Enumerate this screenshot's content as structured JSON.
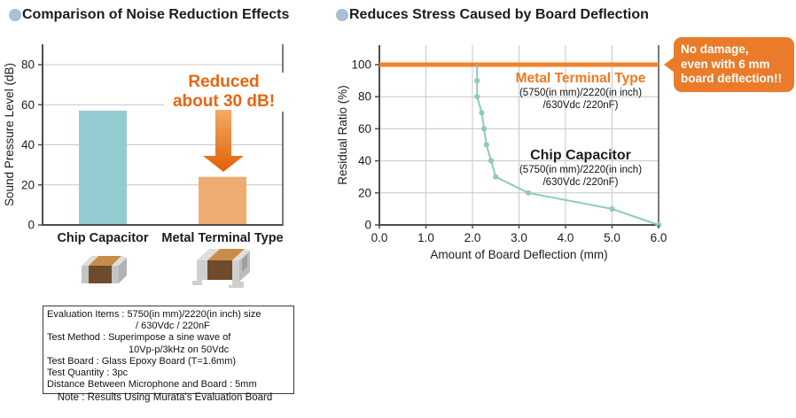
{
  "left": {
    "title": "Comparison of Noise Reduction Effects",
    "annotation": {
      "line1": "Reduced",
      "line2": "about 30 dB!"
    },
    "note_box": {
      "lines": [
        "Evaluation Items : 5750(in mm)/2220(in inch) size",
        "/ 630Vdc / 220nF",
        "Test Method : Superimpose a sine wave of",
        "10Vp-p/3kHz on 50Vdc",
        "Test Board : Glass Epoxy Board (T=1.6mm)",
        "Test Quantity : 3pc",
        "Distance Between Microphone and Board : 5mm"
      ]
    },
    "note": "Note : Results Using Murata's Evaluation Board"
  },
  "right": {
    "title": "Reduces Stress Caused by Board Deflection",
    "metal_label": {
      "name": "Metal Terminal Type",
      "spec1": "(5750(in mm)/2220(in inch)",
      "spec2": "/630Vdc /220nF)"
    },
    "chip_label": {
      "name": "Chip Capacitor",
      "spec1": "(5750(in mm)/2220(in inch)",
      "spec2": "/630Vdc /220nF)"
    },
    "callout": {
      "line1": "No damage,",
      "line2": "even with 6 mm",
      "line3": "board deflection!!"
    }
  },
  "colors": {
    "accent_orange": "#e8650f",
    "bar_teal": "#93cbd1",
    "bar_orange": "#eeac72",
    "line_orange": "#f0822b",
    "line_teal": "#8ecabe",
    "callout_bg": "#ea7b2a",
    "bullet_blue": "#a9bfd4",
    "grid": "#c7c7c7",
    "axis": "#4d4d4d"
  },
  "chart_data": [
    {
      "type": "bar",
      "title": "Comparison of Noise Reduction Effects",
      "categories": [
        "Chip Capacitor",
        "Metal Terminal Type"
      ],
      "values": [
        57,
        24
      ],
      "bar_colors": [
        "#93cbd1",
        "#eeac72"
      ],
      "xlabel": "",
      "ylabel": "Sound Pressure Level (dB)",
      "ylim": [
        0,
        90
      ],
      "y_ticks": [
        0,
        20,
        40,
        60,
        80
      ],
      "grid": true,
      "annotation": "Reduced about 30 dB!"
    },
    {
      "type": "line",
      "title": "Reduces Stress Caused by Board Deflection",
      "xlabel": "Amount of Board Deflection (mm)",
      "ylabel": "Residual Ratio (%)",
      "xlim": [
        0,
        6
      ],
      "ylim": [
        0,
        112
      ],
      "x_ticks": [
        0,
        1,
        2,
        3,
        4,
        5,
        6
      ],
      "x_tick_labels": [
        "0.0",
        "1.0",
        "2.0",
        "3.0",
        "4.0",
        "5.0",
        "6.0"
      ],
      "y_ticks": [
        0,
        20,
        40,
        60,
        80,
        100
      ],
      "grid": true,
      "legend_position": "inside",
      "annotation": "No damage, even with 6 mm board deflection!!",
      "series": [
        {
          "name": "Metal Terminal Type",
          "color": "#f0822b",
          "width": 5,
          "markers": false,
          "x": [
            0,
            6
          ],
          "y": [
            100,
            100
          ]
        },
        {
          "name": "Chip Capacitor",
          "color": "#8ecabe",
          "width": 2,
          "markers": true,
          "skip_first_marker": true,
          "x": [
            2.1,
            2.1,
            2.1,
            2.2,
            2.25,
            2.3,
            2.4,
            2.5,
            3.2,
            5.0,
            6.0
          ],
          "y": [
            100,
            90,
            80,
            70,
            60,
            50,
            40,
            30,
            20,
            10,
            0
          ]
        }
      ]
    }
  ]
}
